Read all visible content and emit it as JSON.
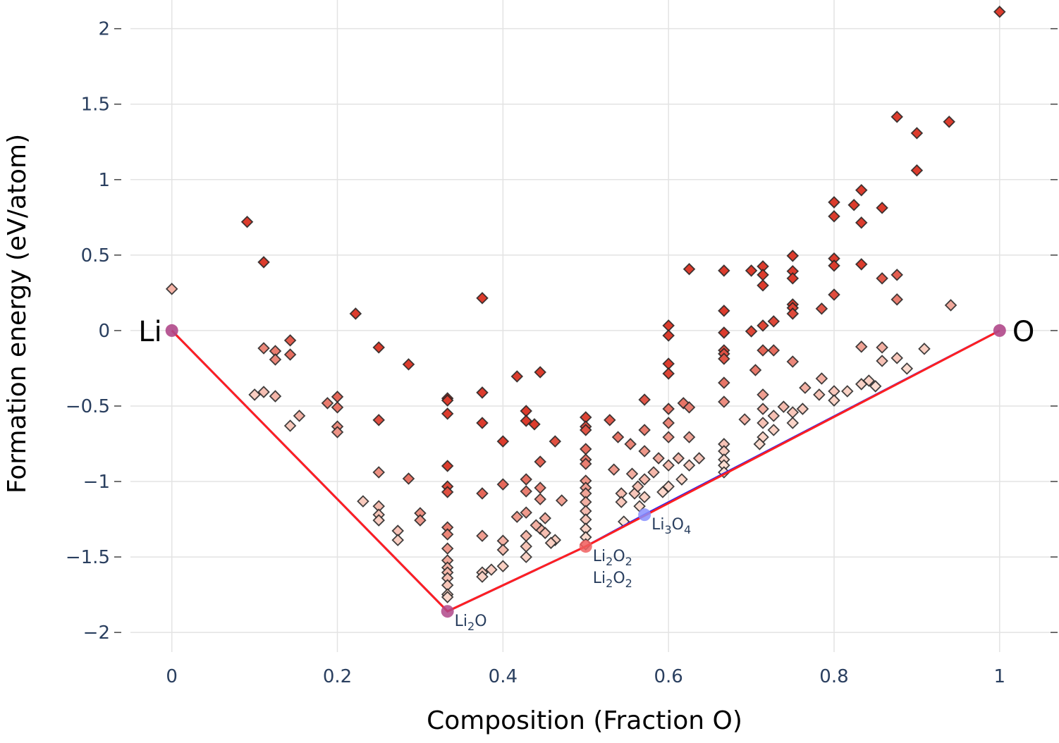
{
  "chart_data": {
    "type": "scatter",
    "title": "",
    "xlabel": "Composition (Fraction O)",
    "ylabel": "Formation energy (eV/atom)",
    "xlim": [
      -0.05,
      1.07
    ],
    "ylim": [
      -2.13,
      2.19
    ],
    "grid": true,
    "x_ticks": [
      0,
      0.2,
      0.4,
      0.6,
      0.8,
      1
    ],
    "x_tick_labels": [
      "0",
      "0.2",
      "0.4",
      "0.6",
      "0.8",
      "1"
    ],
    "y_ticks": [
      2,
      1.5,
      1,
      0.5,
      0,
      -0.5,
      -1,
      -1.5,
      -2
    ],
    "y_tick_labels": [
      "2",
      "1.5",
      "1",
      "0.5",
      "0",
      "−0.5",
      "−1",
      "−1.5",
      "−2"
    ],
    "colors": {
      "hull_blue": "#1f1fff",
      "hull_red": "#ff2020",
      "stable_marker": "#b0488a",
      "li2o2_marker": "#f06060",
      "li3o4_marker": "#8890ff",
      "unstable_low": "#fee8dc",
      "unstable_high": "#dc3c2d",
      "marker_edge": "#222222"
    },
    "terminals": [
      {
        "name": "Li",
        "x": 0,
        "y": 0
      },
      {
        "name": "O",
        "x": 1,
        "y": 0
      }
    ],
    "stable_phases": [
      {
        "base": "Li",
        "sub1": "2",
        "el2": "O",
        "sub2": "",
        "x": 0.333,
        "y": -1.86,
        "hull": "both"
      },
      {
        "base": "Li",
        "sub1": "2",
        "el2": "O",
        "sub2": "2",
        "x": 0.5,
        "y": -1.43,
        "hull": "both"
      },
      {
        "base": "Li",
        "sub1": "2",
        "el2": "O",
        "sub2": "2",
        "x": 0.5,
        "y": -1.43,
        "hull": "blue",
        "label_offset": true
      },
      {
        "base": "Li",
        "sub1": "3",
        "el2": "O",
        "sub2": "4",
        "x": 0.571,
        "y": -1.22,
        "hull": "blue"
      }
    ],
    "hull_blue": [
      [
        0,
        0
      ],
      [
        0.333,
        -1.86
      ],
      [
        0.5,
        -1.43
      ],
      [
        0.571,
        -1.22
      ],
      [
        1,
        0
      ]
    ],
    "hull_red": [
      [
        0,
        0
      ],
      [
        0.333,
        -1.86
      ],
      [
        0.5,
        -1.43
      ],
      [
        1,
        0
      ]
    ],
    "scatter_columns": [
      {
        "x": 0.333,
        "y": [
          -0.449,
          -0.463,
          -0.551,
          -0.897,
          -1.033,
          -1.07,
          -1.304,
          -1.35,
          -1.444,
          -1.523,
          -1.57,
          -1.603,
          -1.64,
          -1.687,
          -1.748,
          -1.766
        ]
      },
      {
        "x": 0.5,
        "y": [
          -0.575,
          -0.636,
          -0.659,
          -0.785,
          -0.855,
          -0.883,
          -0.995,
          -1.042,
          -1.079,
          -1.136,
          -1.196,
          -1.252,
          -1.313,
          -1.369,
          -1.416
        ]
      },
      {
        "x": 0.6,
        "y": [
          0.033,
          -0.033,
          -0.22,
          -0.285,
          -0.519,
          -0.612,
          -0.706,
          -0.893,
          -1.033
        ]
      },
      {
        "x": 0.667,
        "y": [
          0.397,
          0.131,
          -0.014,
          -0.131,
          -0.154,
          -0.187,
          -0.346,
          -0.472,
          -0.752,
          -0.799,
          -0.855,
          -0.893,
          -0.939
        ]
      },
      {
        "x": 0.714,
        "y": [
          0.425,
          0.369,
          0.299,
          0.033,
          -0.131,
          -0.425,
          -0.519,
          -0.612,
          -0.706
        ]
      },
      {
        "x": 0.75,
        "y": [
          0.495,
          0.393,
          0.346,
          0.173,
          0.15,
          0.112,
          -0.206,
          -0.542,
          -0.612
        ]
      },
      {
        "x": 0.8,
        "y": [
          0.85,
          0.757,
          0.477,
          0.43,
          0.238,
          -0.402,
          -0.463
        ]
      },
      {
        "x": 0.833,
        "y": [
          0.93,
          0.715,
          0.439,
          -0.107,
          -0.355
        ]
      }
    ],
    "scatter_points": [
      [
        0,
        0.276
      ],
      [
        0.091,
        0.72
      ],
      [
        0.111,
        0.453
      ],
      [
        0.111,
        -0.117
      ],
      [
        0.125,
        -0.136
      ],
      [
        0.125,
        -0.192
      ],
      [
        0.143,
        -0.065
      ],
      [
        0.143,
        -0.159
      ],
      [
        0.1,
        -0.425
      ],
      [
        0.111,
        -0.407
      ],
      [
        0.125,
        -0.435
      ],
      [
        0.143,
        -0.631
      ],
      [
        0.154,
        -0.565
      ],
      [
        0.188,
        -0.481
      ],
      [
        0.2,
        -0.439
      ],
      [
        0.2,
        -0.509
      ],
      [
        0.2,
        -0.636
      ],
      [
        0.2,
        -0.673
      ],
      [
        0.222,
        0.112
      ],
      [
        0.231,
        -1.131
      ],
      [
        0.25,
        -0.112
      ],
      [
        0.25,
        -0.593
      ],
      [
        0.25,
        -0.939
      ],
      [
        0.25,
        -1.164
      ],
      [
        0.25,
        -1.22
      ],
      [
        0.25,
        -1.257
      ],
      [
        0.273,
        -1.327
      ],
      [
        0.273,
        -1.388
      ],
      [
        0.286,
        -0.224
      ],
      [
        0.286,
        -0.981
      ],
      [
        0.3,
        -1.21
      ],
      [
        0.3,
        -1.257
      ],
      [
        0.375,
        0.215
      ],
      [
        0.375,
        -0.411
      ],
      [
        0.375,
        -0.612
      ],
      [
        0.375,
        -1.079
      ],
      [
        0.375,
        -1.36
      ],
      [
        0.375,
        -1.603
      ],
      [
        0.375,
        -1.631
      ],
      [
        0.386,
        -1.584
      ],
      [
        0.4,
        -0.734
      ],
      [
        0.4,
        -1.019
      ],
      [
        0.4,
        -1.393
      ],
      [
        0.4,
        -1.453
      ],
      [
        0.4,
        -1.561
      ],
      [
        0.417,
        -0.304
      ],
      [
        0.417,
        -1.234
      ],
      [
        0.428,
        -0.533
      ],
      [
        0.428,
        -0.598
      ],
      [
        0.438,
        -0.621
      ],
      [
        0.445,
        -0.276
      ],
      [
        0.445,
        -0.869
      ],
      [
        0.445,
        -1.042
      ],
      [
        0.445,
        -1.117
      ],
      [
        0.445,
        -1.313
      ],
      [
        0.428,
        -0.986
      ],
      [
        0.428,
        -1.065
      ],
      [
        0.428,
        -1.206
      ],
      [
        0.428,
        -1.36
      ],
      [
        0.428,
        -1.5
      ],
      [
        0.428,
        -1.43
      ],
      [
        0.44,
        -1.29
      ],
      [
        0.451,
        -1.341
      ],
      [
        0.451,
        -1.243
      ],
      [
        0.463,
        -0.734
      ],
      [
        0.463,
        -1.388
      ],
      [
        0.471,
        -1.126
      ],
      [
        0.458,
        -1.407
      ],
      [
        0.529,
        -0.593
      ],
      [
        0.534,
        -0.921
      ],
      [
        0.539,
        -0.706
      ],
      [
        0.543,
        -1.079
      ],
      [
        0.543,
        -1.136
      ],
      [
        0.546,
        -1.266
      ],
      [
        0.554,
        -0.752
      ],
      [
        0.556,
        -0.949
      ],
      [
        0.559,
        -1.079
      ],
      [
        0.563,
        -1.033
      ],
      [
        0.565,
        -1.164
      ],
      [
        0.571,
        -0.458
      ],
      [
        0.571,
        -0.659
      ],
      [
        0.571,
        -0.799
      ],
      [
        0.571,
        -0.986
      ],
      [
        0.571,
        -1.103
      ],
      [
        0.582,
        -0.939
      ],
      [
        0.588,
        -0.846
      ],
      [
        0.593,
        -1.07
      ],
      [
        0.612,
        -0.846
      ],
      [
        0.616,
        -0.986
      ],
      [
        0.618,
        -0.481
      ],
      [
        0.625,
        0.407
      ],
      [
        0.625,
        -0.509
      ],
      [
        0.625,
        -0.706
      ],
      [
        0.625,
        -0.893
      ],
      [
        0.637,
        -0.846
      ],
      [
        0.692,
        -0.589
      ],
      [
        0.7,
        0.397
      ],
      [
        0.7,
        -0.005
      ],
      [
        0.705,
        -0.262
      ],
      [
        0.71,
        -0.752
      ],
      [
        0.727,
        0.061
      ],
      [
        0.727,
        -0.131
      ],
      [
        0.727,
        -0.565
      ],
      [
        0.727,
        -0.659
      ],
      [
        0.762,
        -0.519
      ],
      [
        0.785,
        0.145
      ],
      [
        0.785,
        -0.318
      ],
      [
        0.824,
        0.832
      ],
      [
        0.858,
        0.813
      ],
      [
        0.858,
        0.346
      ],
      [
        0.858,
        -0.201
      ],
      [
        0.858,
        -0.112
      ],
      [
        0.876,
        1.416
      ],
      [
        0.876,
        0.369
      ],
      [
        0.876,
        0.206
      ],
      [
        0.876,
        -0.182
      ],
      [
        0.888,
        -0.252
      ],
      [
        0.9,
        1.308
      ],
      [
        0.9,
        1.061
      ],
      [
        0.909,
        -0.121
      ],
      [
        0.939,
        1.383
      ],
      [
        0.941,
        0.168
      ],
      [
        1.0,
        2.112
      ],
      [
        0.739,
        -0.505
      ],
      [
        0.765,
        -0.379
      ],
      [
        0.782,
        -0.425
      ],
      [
        0.816,
        -0.402
      ],
      [
        0.842,
        -0.332
      ],
      [
        0.85,
        -0.369
      ]
    ]
  }
}
